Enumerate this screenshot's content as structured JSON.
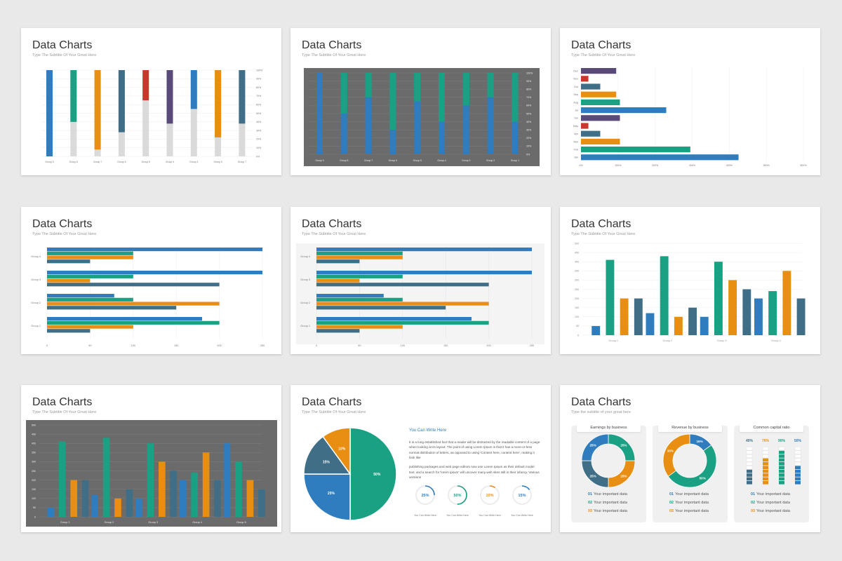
{
  "slides": [
    {
      "title": "Data Charts",
      "subtitle": "Type The Subtitle Of Your Great Here"
    },
    {
      "title": "Data Charts",
      "subtitle": "Type The Subtitle Of Your Great Here"
    },
    {
      "title": "Data Charts",
      "subtitle": "Type The Subtitle Of Your Great Here"
    },
    {
      "title": "Data Charts",
      "subtitle": "Type The Subtitle Of Your Great Here"
    },
    {
      "title": "Data Charts",
      "subtitle": "Type The Subtitle Of Your Great Here"
    },
    {
      "title": "Data Charts",
      "subtitle": "Type The Subtitle Of Your Great Here"
    },
    {
      "title": "Data Charts",
      "subtitle": "Type The Subtitle Of Your Great Here"
    },
    {
      "title": "Data Charts",
      "subtitle": "Type The Subtitle Of Your Great Here"
    },
    {
      "title": "Data Charts",
      "subtitle": "Type the subtitle of your great here"
    }
  ],
  "text_block": {
    "heading": "You Can Write Here",
    "para1": "It is a long established fact that a reader will be distracted by the readable content of a page when looking at its layout. The point of using Lorem Ipsum is that it has a more-or-less normal distribution of letters, as opposed to using 'Content here, content here', making it look like",
    "para2": "publishing packages and web page editors now use Lorem Ipsum as their default model text, and a search for 'lorem ipsum' will uncover many web sites still in their infancy. Various versions",
    "progress_labels": [
      "You Can Write Here",
      "You Can Write Here",
      "You Can Write Here",
      "You Can Write Here"
    ]
  },
  "cards": [
    {
      "title": "Earnings by business",
      "items": [
        {
          "num": "01",
          "label": "Your important data"
        },
        {
          "num": "02",
          "label": "Your important data"
        },
        {
          "num": "03",
          "label": "Your important data"
        }
      ]
    },
    {
      "title": "Revenue by business",
      "items": [
        {
          "num": "01",
          "label": "Your important data"
        },
        {
          "num": "02",
          "label": "Your important data"
        },
        {
          "num": "03",
          "label": "Your important data"
        }
      ]
    },
    {
      "title": "Common capital ratio",
      "items": [
        {
          "num": "01",
          "label": "Your important data"
        },
        {
          "num": "02",
          "label": "Your important data"
        },
        {
          "num": "03",
          "label": "Your important data"
        }
      ]
    }
  ],
  "colors": {
    "blue": "#2f7dbf",
    "green": "#1aa083",
    "orange": "#e88e12",
    "slate": "#3f6e86",
    "red": "#c8382c",
    "purple": "#5a4a7a",
    "light": "#dadada",
    "dark": "#6b6b6b"
  },
  "chart_data": [
    {
      "type": "bar",
      "stacked": true,
      "categories": [
        "Group 5",
        "Group 8",
        "Group 7",
        "Group 6",
        "Group 5",
        "Group 4",
        "Group 3",
        "Group 5",
        "Group 7"
      ],
      "values": [
        100,
        60,
        92,
        72,
        35,
        62,
        45,
        78,
        62
      ],
      "colors": [
        "blue",
        "green",
        "orange",
        "slate",
        "red",
        "purple",
        "blue",
        "orange",
        "slate"
      ],
      "yticks": [
        "100%",
        "90%",
        "80%",
        "70%",
        "60%",
        "50%",
        "40%",
        "30%",
        "20%",
        "10%",
        "0%"
      ]
    },
    {
      "type": "bar",
      "stacked": true,
      "categories": [
        "Group 0",
        "Group 8",
        "Group 7",
        "Group 6",
        "Group 5",
        "Group 4",
        "Group 3",
        "Group 2",
        "Group 1"
      ],
      "values": [
        0,
        50,
        30,
        70,
        35,
        60,
        40,
        30,
        60
      ],
      "yticks": [
        "100%",
        "90%",
        "80%",
        "70%",
        "60%",
        "50%",
        "40%",
        "30%",
        "20%",
        "10%",
        "0%"
      ]
    },
    {
      "type": "bar",
      "orientation": "horizontal",
      "categories": [
        "Dec",
        "Nov",
        "Oct",
        "Sep",
        "Aug",
        "Jul",
        "Jun",
        "May",
        "Apr",
        "Mar",
        "Feb",
        "Jan"
      ],
      "values": [
        95,
        20,
        52,
        95,
        105,
        230,
        105,
        20,
        52,
        105,
        295,
        425
      ],
      "colors": [
        "purple",
        "red",
        "slate",
        "orange",
        "green",
        "blue",
        "purple",
        "red",
        "slate",
        "orange",
        "green",
        "blue"
      ],
      "xticks": [
        "0%",
        "100%",
        "200%",
        "300%",
        "400%",
        "500%",
        "600%"
      ],
      "xlim": [
        0,
        600
      ]
    },
    {
      "type": "bar",
      "orientation": "horizontal",
      "categories": [
        "Group 4",
        "Group 3",
        "Group 2",
        "Group 1"
      ],
      "series": [
        {
          "color": "blue",
          "values": [
            250,
            250,
            78,
            180
          ]
        },
        {
          "color": "green",
          "values": [
            100,
            100,
            100,
            200
          ]
        },
        {
          "color": "orange",
          "values": [
            100,
            50,
            200,
            100
          ]
        },
        {
          "color": "slate",
          "values": [
            50,
            200,
            150,
            50
          ]
        }
      ],
      "xticks": [
        "0",
        "50",
        "100",
        "150",
        "200",
        "250"
      ],
      "xlim": [
        0,
        250
      ]
    },
    {
      "type": "bar",
      "orientation": "horizontal",
      "categories": [
        "Group 4",
        "Group 3",
        "Group 2",
        "Group 1"
      ],
      "series": [
        {
          "color": "blue",
          "values": [
            250,
            250,
            78,
            180
          ]
        },
        {
          "color": "green",
          "values": [
            100,
            100,
            100,
            200
          ]
        },
        {
          "color": "orange",
          "values": [
            100,
            50,
            200,
            100
          ]
        },
        {
          "color": "slate",
          "values": [
            50,
            200,
            150,
            50
          ]
        }
      ],
      "xticks": [
        "0",
        "50",
        "100",
        "150",
        "200",
        "250"
      ],
      "xlim": [
        0,
        250
      ]
    },
    {
      "type": "bar",
      "categories": [
        "Group 1",
        "Group 2",
        "Group 3",
        "Group 4"
      ],
      "series": [
        {
          "color": "blue",
          "values": [
            50,
            120,
            100,
            200
          ]
        },
        {
          "color": "green",
          "values": [
            410,
            430,
            400,
            240
          ]
        },
        {
          "color": "orange",
          "values": [
            200,
            100,
            300,
            350
          ]
        },
        {
          "color": "slate",
          "values": [
            200,
            150,
            250,
            200
          ]
        }
      ],
      "yticks": [
        "500",
        "450",
        "400",
        "350",
        "300",
        "250",
        "200",
        "150",
        "100",
        "50",
        "0"
      ],
      "ylim": [
        0,
        500
      ]
    },
    {
      "type": "bar",
      "categories": [
        "Group 1",
        "Group 2",
        "Group 3",
        "Group 4",
        "Group 5"
      ],
      "series": [
        {
          "color": "blue",
          "values": [
            50,
            120,
            100,
            200,
            400
          ]
        },
        {
          "color": "green",
          "values": [
            410,
            430,
            400,
            240,
            300
          ]
        },
        {
          "color": "orange",
          "values": [
            200,
            100,
            300,
            350,
            200
          ]
        },
        {
          "color": "slate",
          "values": [
            200,
            150,
            250,
            200,
            150
          ]
        }
      ],
      "yticks": [
        "500",
        "450",
        "400",
        "350",
        "300",
        "250",
        "200",
        "150",
        "100",
        "50",
        "0"
      ],
      "ylim": [
        0,
        500
      ]
    },
    {
      "type": "pie",
      "labels": [
        "50%",
        "25%",
        "15%",
        "10%"
      ],
      "values": [
        50,
        25,
        15,
        10
      ],
      "colors": [
        "green",
        "blue",
        "slate",
        "orange"
      ],
      "progress": [
        {
          "label": "25%",
          "value": 25,
          "color": "blue"
        },
        {
          "label": "50%",
          "value": 50,
          "color": "green"
        },
        {
          "label": "10%",
          "value": 10,
          "color": "orange"
        },
        {
          "label": "15%",
          "value": 15,
          "color": "blue"
        }
      ]
    },
    {
      "type": "donut",
      "donuts": [
        {
          "labels": [
            "25%",
            "25%",
            "25%",
            "25%"
          ],
          "values": [
            25,
            25,
            25,
            25
          ],
          "colors": [
            "green",
            "orange",
            "slate",
            "blue"
          ]
        },
        {
          "labels": [
            "15%",
            "50%",
            "35%"
          ],
          "values": [
            15,
            50,
            35
          ],
          "colors": [
            "blue",
            "green",
            "orange"
          ]
        }
      ],
      "ratios": [
        {
          "label": "40%",
          "value": 40,
          "color": "slate"
        },
        {
          "label": "70%",
          "value": 70,
          "color": "orange"
        },
        {
          "label": "90%",
          "value": 90,
          "color": "green"
        },
        {
          "label": "50%",
          "value": 50,
          "color": "blue"
        }
      ]
    }
  ]
}
